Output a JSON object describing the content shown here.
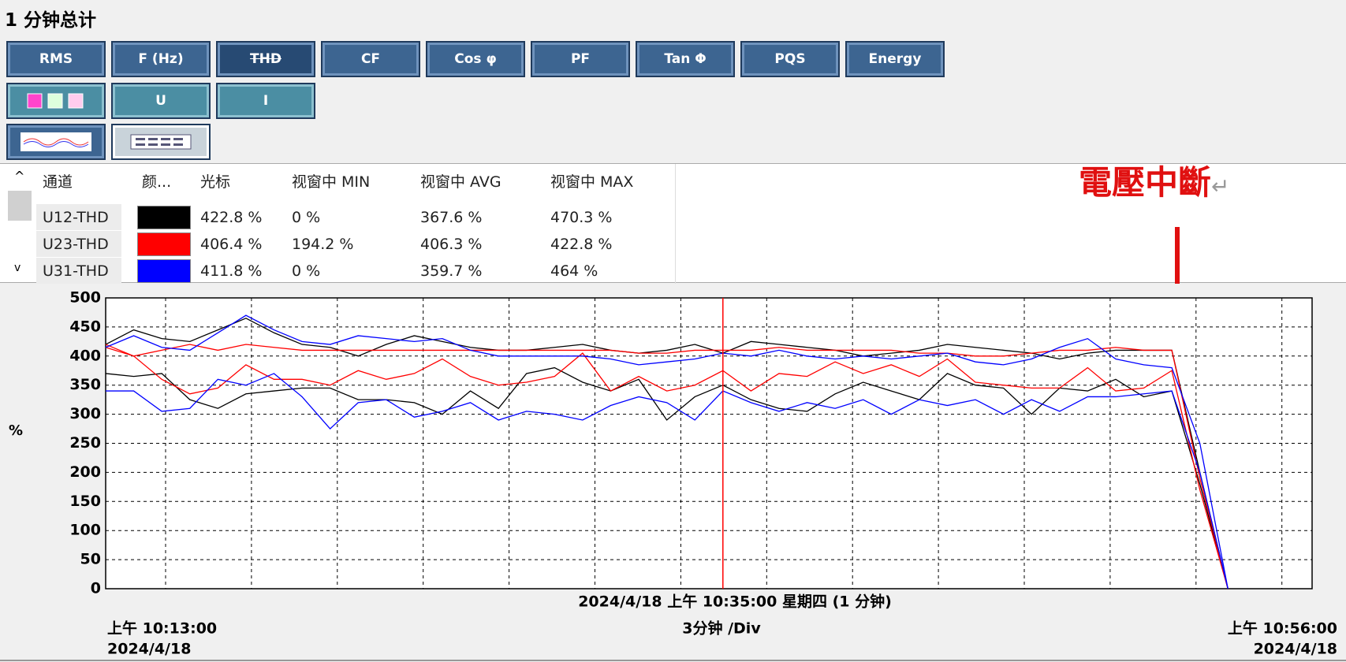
{
  "header": {
    "title": "1 分钟总计"
  },
  "buttons": {
    "row1": [
      "RMS",
      "F (Hz)",
      "THD",
      "CF",
      "Cos φ",
      "PF",
      "Tan Φ",
      "PQS",
      "Energy"
    ],
    "row2": [
      "U",
      "I"
    ]
  },
  "table": {
    "columns": [
      "通道",
      "颜...",
      "光标",
      "视窗中 MIN",
      "视窗中 AVG",
      "视窗中 MAX"
    ],
    "rows": [
      {
        "channel": "U12-THD",
        "color": "#000000",
        "cursor": "422.8 %",
        "min": "0 %",
        "avg": "367.6 %",
        "max": "470.3 %"
      },
      {
        "channel": "U23-THD",
        "color": "#ff0000",
        "cursor": "406.4 %",
        "min": "194.2 %",
        "avg": "406.3 %",
        "max": "422.8 %"
      },
      {
        "channel": "U31-THD",
        "color": "#0000ff",
        "cursor": "411.8 %",
        "min": "0 %",
        "avg": "359.7 %",
        "max": "464 %"
      }
    ]
  },
  "annotation": {
    "text": "電壓中斷",
    "mark": "↵"
  },
  "chart_data": {
    "type": "line",
    "ylabel": "%",
    "ylim": [
      0,
      500
    ],
    "yticks": [
      0,
      50,
      100,
      150,
      200,
      250,
      300,
      350,
      400,
      450,
      500
    ],
    "xlim": [
      0,
      43
    ],
    "grid": true,
    "x": [
      0,
      1,
      2,
      3,
      4,
      5,
      6,
      7,
      8,
      9,
      10,
      11,
      12,
      13,
      14,
      15,
      16,
      17,
      18,
      19,
      20,
      21,
      22,
      23,
      24,
      25,
      26,
      27,
      28,
      29,
      30,
      31,
      32,
      33,
      34,
      35,
      36,
      37,
      38,
      39,
      40
    ],
    "cursor_x": 22,
    "cursor_color": "#ff0000",
    "x_center_label": "2024/4/18 上午 10:35:00 星期四 (1 分钟)",
    "x_div_label": "3分钟 /Div",
    "x_start_label": [
      "上午 10:13:00",
      "2024/4/18"
    ],
    "x_end_label": [
      "上午 10:56:00",
      "2024/4/18"
    ],
    "series": [
      {
        "color": "#000000",
        "values": [
          420,
          445,
          430,
          425,
          445,
          465,
          440,
          420,
          415,
          400,
          420,
          435,
          425,
          415,
          410,
          410,
          415,
          420,
          410,
          405,
          410,
          420,
          405,
          425,
          420,
          415,
          410,
          400,
          405,
          410,
          420,
          415,
          410,
          405,
          395,
          405,
          410,
          410,
          410,
          200,
          0
        ]
      },
      {
        "color": "#000000",
        "values": [
          370,
          365,
          370,
          325,
          310,
          335,
          340,
          345,
          345,
          325,
          325,
          320,
          300,
          340,
          310,
          370,
          380,
          355,
          340,
          360,
          290,
          330,
          350,
          325,
          310,
          305,
          335,
          355,
          340,
          325,
          370,
          350,
          345,
          300,
          345,
          340,
          360,
          330,
          340,
          180,
          0
        ]
      },
      {
        "color": "#ff0000",
        "values": [
          420,
          400,
          410,
          420,
          410,
          420,
          415,
          410,
          410,
          410,
          410,
          410,
          410,
          410,
          410,
          410,
          410,
          410,
          410,
          405,
          405,
          410,
          410,
          410,
          415,
          410,
          410,
          410,
          410,
          405,
          405,
          400,
          400,
          405,
          410,
          410,
          415,
          410,
          410,
          190,
          0
        ]
      },
      {
        "color": "#ff0000",
        "values": [
          415,
          400,
          360,
          335,
          345,
          385,
          360,
          360,
          350,
          375,
          360,
          370,
          395,
          365,
          350,
          355,
          365,
          405,
          340,
          365,
          340,
          350,
          375,
          340,
          370,
          365,
          390,
          370,
          385,
          365,
          395,
          355,
          350,
          345,
          345,
          380,
          340,
          345,
          375,
          170,
          0
        ]
      },
      {
        "color": "#0000ff",
        "values": [
          415,
          435,
          415,
          410,
          440,
          470,
          445,
          425,
          420,
          435,
          430,
          425,
          430,
          410,
          400,
          400,
          400,
          400,
          395,
          385,
          390,
          395,
          405,
          400,
          410,
          400,
          395,
          400,
          395,
          400,
          405,
          390,
          385,
          395,
          415,
          430,
          395,
          385,
          380,
          250,
          0
        ]
      },
      {
        "color": "#0000ff",
        "values": [
          340,
          340,
          305,
          310,
          360,
          350,
          370,
          330,
          275,
          320,
          325,
          295,
          305,
          320,
          290,
          305,
          300,
          290,
          315,
          330,
          320,
          290,
          340,
          320,
          305,
          320,
          310,
          325,
          300,
          325,
          315,
          325,
          300,
          325,
          305,
          330,
          330,
          335,
          340,
          200,
          0
        ]
      }
    ]
  }
}
